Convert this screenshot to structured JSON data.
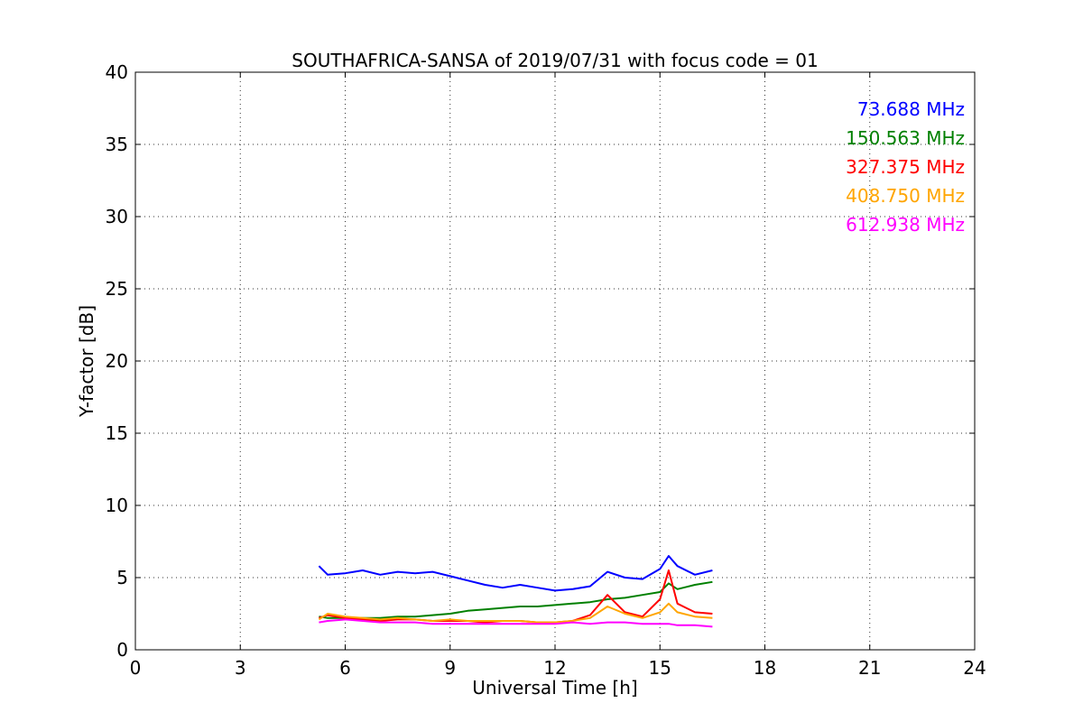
{
  "chart_data": {
    "type": "line",
    "title": "SOUTHAFRICA-SANSA of 2019/07/31 with focus code = 01",
    "xlabel": "Universal Time [h]",
    "ylabel": "Y-factor [dB]",
    "xlim": [
      0,
      24
    ],
    "ylim": [
      0,
      40
    ],
    "xticks": [
      0,
      3,
      6,
      9,
      12,
      15,
      18,
      21,
      24
    ],
    "yticks": [
      0,
      5,
      10,
      15,
      20,
      25,
      30,
      35,
      40
    ],
    "xtick_labels": [
      "0",
      "3",
      "6",
      "9",
      "12",
      "15",
      "18",
      "21",
      "24"
    ],
    "ytick_labels": [
      "0",
      "5",
      "10",
      "15",
      "20",
      "25",
      "30",
      "35",
      "40"
    ],
    "grid": true,
    "legend_position": "top-right",
    "series": [
      {
        "name": "73.688 MHz",
        "color": "#0000ff",
        "x": [
          5.25,
          5.5,
          6.0,
          6.5,
          7.0,
          7.5,
          8.0,
          8.5,
          9.0,
          9.5,
          10.0,
          10.5,
          11.0,
          11.5,
          12.0,
          12.5,
          13.0,
          13.5,
          14.0,
          14.5,
          15.0,
          15.25,
          15.5,
          16.0,
          16.5
        ],
        "y": [
          5.8,
          5.2,
          5.3,
          5.5,
          5.2,
          5.4,
          5.3,
          5.4,
          5.1,
          4.8,
          4.5,
          4.3,
          4.5,
          4.3,
          4.1,
          4.2,
          4.4,
          5.4,
          5.0,
          4.9,
          5.6,
          6.5,
          5.8,
          5.2,
          5.5
        ]
      },
      {
        "name": "150.563 MHz",
        "color": "#008000",
        "x": [
          5.25,
          5.5,
          6.0,
          6.5,
          7.0,
          7.5,
          8.0,
          8.5,
          9.0,
          9.5,
          10.0,
          10.5,
          11.0,
          11.5,
          12.0,
          12.5,
          13.0,
          13.5,
          14.0,
          14.5,
          15.0,
          15.25,
          15.5,
          16.0,
          16.5
        ],
        "y": [
          2.3,
          2.2,
          2.2,
          2.2,
          2.2,
          2.3,
          2.3,
          2.4,
          2.5,
          2.7,
          2.8,
          2.9,
          3.0,
          3.0,
          3.1,
          3.2,
          3.3,
          3.5,
          3.6,
          3.8,
          4.0,
          4.6,
          4.2,
          4.5,
          4.7
        ]
      },
      {
        "name": "327.375 MHz",
        "color": "#ff0000",
        "x": [
          5.25,
          5.5,
          6.0,
          6.5,
          7.0,
          7.5,
          8.0,
          8.5,
          9.0,
          9.5,
          10.0,
          10.5,
          11.0,
          11.5,
          12.0,
          12.5,
          13.0,
          13.5,
          14.0,
          14.5,
          15.0,
          15.25,
          15.5,
          16.0,
          16.5
        ],
        "y": [
          2.2,
          2.4,
          2.2,
          2.1,
          2.0,
          2.1,
          2.1,
          2.0,
          2.0,
          2.0,
          1.9,
          2.0,
          2.0,
          1.9,
          1.9,
          2.0,
          2.4,
          3.8,
          2.6,
          2.3,
          3.5,
          5.5,
          3.2,
          2.6,
          2.5
        ]
      },
      {
        "name": "408.750 MHz",
        "color": "#ffa500",
        "x": [
          5.25,
          5.5,
          6.0,
          6.5,
          7.0,
          7.5,
          8.0,
          8.5,
          9.0,
          9.5,
          10.0,
          10.5,
          11.0,
          11.5,
          12.0,
          12.5,
          13.0,
          13.5,
          14.0,
          14.5,
          15.0,
          15.25,
          15.5,
          16.0,
          16.5
        ],
        "y": [
          2.1,
          2.5,
          2.3,
          2.2,
          2.1,
          2.2,
          2.1,
          2.0,
          2.1,
          2.0,
          2.0,
          2.0,
          2.0,
          1.9,
          1.9,
          2.0,
          2.2,
          3.0,
          2.5,
          2.2,
          2.6,
          3.2,
          2.6,
          2.3,
          2.2
        ]
      },
      {
        "name": "612.938 MHz",
        "color": "#ff00ff",
        "x": [
          5.25,
          5.5,
          6.0,
          6.5,
          7.0,
          7.5,
          8.0,
          8.5,
          9.0,
          9.5,
          10.0,
          10.5,
          11.0,
          11.5,
          12.0,
          12.5,
          13.0,
          13.5,
          14.0,
          14.5,
          15.0,
          15.25,
          15.5,
          16.0,
          16.5
        ],
        "y": [
          1.9,
          2.0,
          2.1,
          2.0,
          1.9,
          1.9,
          1.9,
          1.8,
          1.8,
          1.8,
          1.8,
          1.8,
          1.8,
          1.8,
          1.8,
          1.9,
          1.8,
          1.9,
          1.9,
          1.8,
          1.8,
          1.8,
          1.7,
          1.7,
          1.6
        ]
      }
    ]
  }
}
